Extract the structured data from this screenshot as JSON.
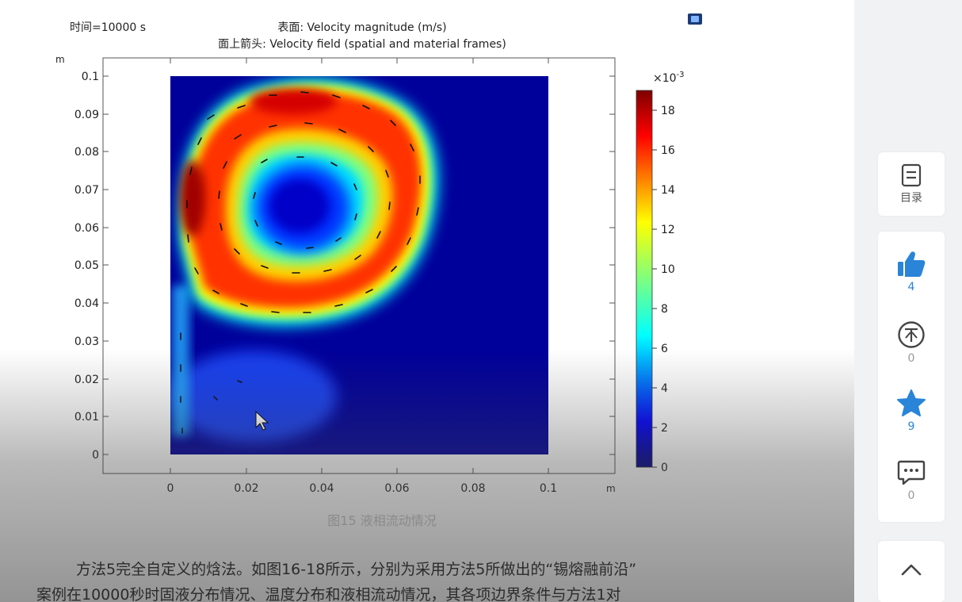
{
  "figure": {
    "time_label": "时间=10000 s",
    "surface_label": "表面: Velocity magnitude (m/s)",
    "arrow_label": "面上箭头: Velocity field (spatial and material frames)",
    "y_unit": "m",
    "x_unit": "m",
    "caption": "图15 液相流动情况"
  },
  "chart_data": {
    "type": "heatmap",
    "title": "表面: Velocity magnitude (m/s)",
    "subtitle": "面上箭头: Velocity field (spatial and material frames)",
    "xlabel": "m",
    "ylabel": "m",
    "x_ticks": [
      "0",
      "0.02",
      "0.04",
      "0.06",
      "0.08",
      "0.1"
    ],
    "y_ticks": [
      "0",
      "0.01",
      "0.02",
      "0.03",
      "0.04",
      "0.05",
      "0.06",
      "0.07",
      "0.08",
      "0.09",
      "0.1"
    ],
    "xlim": [
      0,
      0.1
    ],
    "ylim": [
      0,
      0.1
    ],
    "colorbar": {
      "multiplier": "×10",
      "exponent": "-3",
      "ticks": [
        "0",
        "2",
        "4",
        "6",
        "8",
        "10",
        "12",
        "14",
        "16",
        "18"
      ],
      "range": [
        0,
        19
      ],
      "colormap": "jet"
    },
    "features": [
      {
        "name": "vortex-ring",
        "center": [
          0.035,
          0.063
        ],
        "peak": 19
      }
    ]
  },
  "paragraph": {
    "line1": "方法5完全自定义的焓法。如图16-18所示，分别为采用方法5所做出的“锡熔融前沿”",
    "line2": "案例在10000秒时固液分布情况、温度分布和液相流动情况，其各项边界条件与方法1对"
  },
  "sidebar": {
    "toc_label": "目录",
    "like_count": "4",
    "coin_count": "0",
    "favorite_count": "9",
    "comment_count": "0"
  },
  "colors": {
    "accent": "#2a84d8",
    "coin_gray": "#444444"
  }
}
